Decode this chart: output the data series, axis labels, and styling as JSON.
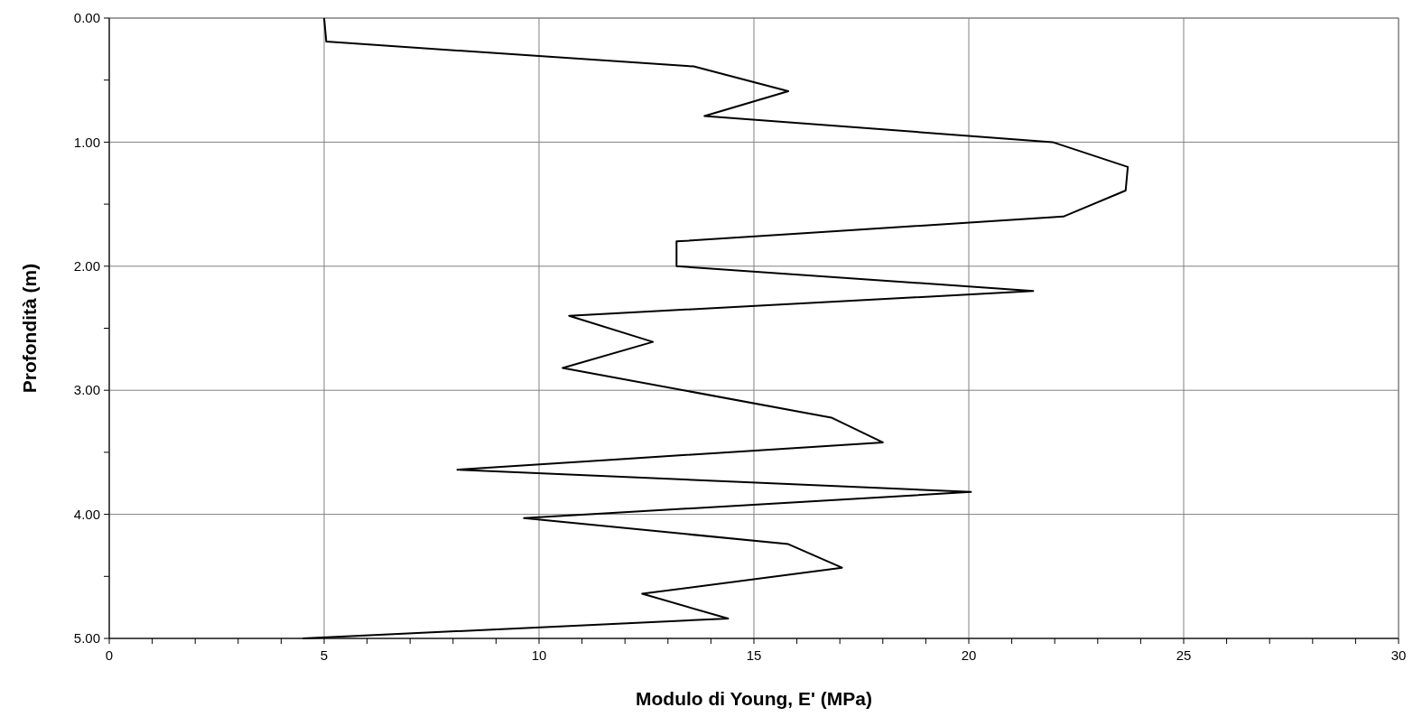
{
  "chart_data": {
    "type": "line",
    "xlabel": "Modulo di Young, E' (MPa)",
    "ylabel": "Profondità (m)",
    "xlim": [
      0,
      30
    ],
    "ylim": [
      5,
      0
    ],
    "xticks": [
      0,
      {
        "value": 1,
        "label": null
      },
      {
        "value": 2,
        "label": null
      },
      {
        "value": 3,
        "label": null
      },
      {
        "value": 4,
        "label": null
      },
      5,
      {
        "value": 6,
        "label": null
      },
      {
        "value": 7,
        "label": null
      },
      {
        "value": 8,
        "label": null
      },
      {
        "value": 9,
        "label": null
      },
      10,
      {
        "value": 11,
        "label": null
      },
      {
        "value": 12,
        "label": null
      },
      {
        "value": 13,
        "label": null
      },
      {
        "value": 14,
        "label": null
      },
      15,
      {
        "value": 16,
        "label": null
      },
      {
        "value": 17,
        "label": null
      },
      {
        "value": 18,
        "label": null
      },
      {
        "value": 19,
        "label": null
      },
      20,
      {
        "value": 21,
        "label": null
      },
      {
        "value": 22,
        "label": null
      },
      {
        "value": 23,
        "label": null
      },
      {
        "value": 24,
        "label": null
      },
      25,
      {
        "value": 26,
        "label": null
      },
      {
        "value": 27,
        "label": null
      },
      {
        "value": 28,
        "label": null
      },
      {
        "value": 29,
        "label": null
      },
      30
    ],
    "yticks": [
      {
        "value": 0,
        "label": "0.00"
      },
      {
        "value": 0.5,
        "label": null
      },
      {
        "value": 1,
        "label": "1.00"
      },
      {
        "value": 1.5,
        "label": null
      },
      {
        "value": 2,
        "label": "2.00"
      },
      {
        "value": 2.5,
        "label": null
      },
      {
        "value": 3,
        "label": "3.00"
      },
      {
        "value": 3.5,
        "label": null
      },
      {
        "value": 4,
        "label": "4.00"
      },
      {
        "value": 4.5,
        "label": null
      },
      {
        "value": 5,
        "label": "5.00"
      }
    ],
    "grid": true,
    "marker": "none",
    "line_style": "solid",
    "series": [
      {
        "color": "#000000",
        "x": [
          5.0,
          5.05,
          13.6,
          15.8,
          13.85,
          21.95,
          23.7,
          23.65,
          22.2,
          13.2,
          13.2,
          21.5,
          10.7,
          12.65,
          10.55,
          16.8,
          18.0,
          8.1,
          20.05,
          9.65,
          15.8,
          17.05,
          12.4,
          14.4,
          4.5
        ],
        "values": [
          0,
          0.19,
          0.39,
          0.59,
          0.79,
          1.0,
          1.2,
          1.39,
          1.6,
          1.8,
          2.0,
          2.2,
          2.4,
          2.61,
          2.82,
          3.22,
          3.42,
          3.64,
          3.82,
          4.03,
          4.24,
          4.43,
          4.64,
          4.84,
          5.0
        ]
      }
    ]
  }
}
